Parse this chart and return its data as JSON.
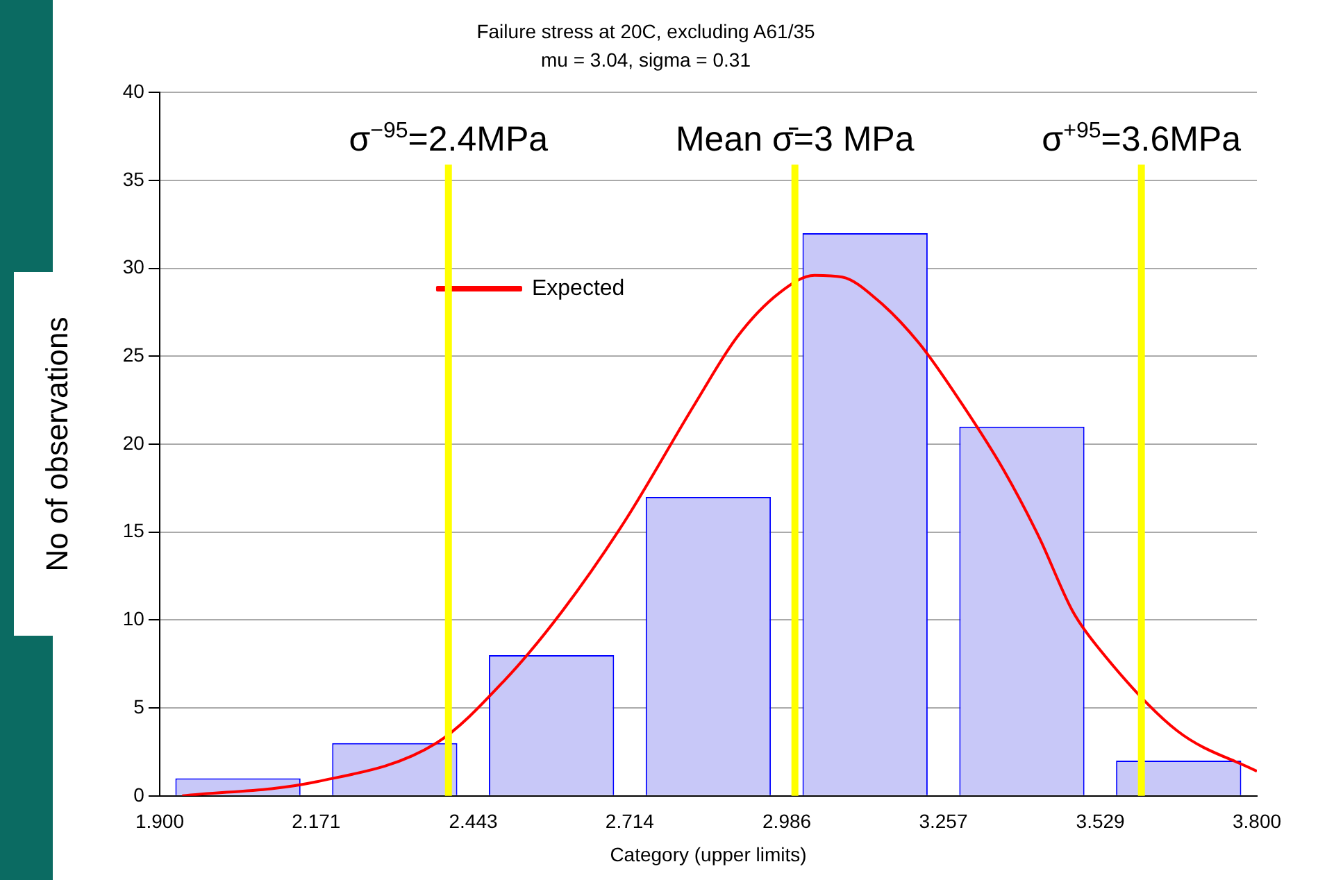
{
  "chart_data": {
    "type": "histogram",
    "title": "Failure stress at 20C, excluding A61/35",
    "subtitle": "mu = 3.04, sigma = 0.31",
    "xlabel": "Category (upper limits)",
    "ylabel": "No of observations",
    "bins": [
      1.9,
      2.171,
      2.443,
      2.714,
      2.986,
      3.257,
      3.529,
      3.8
    ],
    "values": [
      1,
      3,
      8,
      17,
      32,
      21,
      2
    ],
    "color": "#c8c8f8",
    "series": [
      {
        "name": "Expected",
        "type": "line",
        "color": "#ff0000",
        "x": [
          1.939,
          2.171,
          2.379,
          2.498,
          2.597,
          2.705,
          2.827,
          2.9,
          2.973,
          3.034,
          3.082,
          3.143,
          3.216,
          3.289,
          3.362,
          3.423,
          3.481,
          3.526,
          3.662,
          3.8
        ],
        "values": [
          0,
          0.8,
          3.0,
          6.6,
          10.5,
          15.6,
          22.3,
          26.1,
          28.6,
          29.6,
          29.5,
          28.2,
          25.7,
          22.3,
          18.5,
          14.7,
          10.5,
          8.4,
          3.7,
          1.4
        ]
      }
    ],
    "ref_lines": [
      {
        "axis": "x",
        "value": 2.4,
        "label": "σ$^{−95}$=2.4MPa",
        "color": "#ffff00"
      },
      {
        "axis": "x",
        "value": 3,
        "label": "Mean σ̄=3 MPa",
        "color": "#ffff00"
      },
      {
        "axis": "x",
        "value": 3.6,
        "label": "σ$^{+95}$=3.6MPa",
        "color": "#ffff00"
      }
    ],
    "xlim": [
      1.9,
      3.8
    ],
    "xticks": [
      {
        "value": 1.9,
        "label": "1.900"
      },
      2.171,
      2.443,
      2.714,
      2.986,
      3.257,
      3.529,
      {
        "value": 3.8,
        "label": "3.800"
      }
    ],
    "ylim": [
      0,
      40
    ],
    "yticks": [
      0,
      5,
      10,
      15,
      20,
      25,
      30,
      35,
      40
    ],
    "grid": "y",
    "legend": "top left"
  }
}
